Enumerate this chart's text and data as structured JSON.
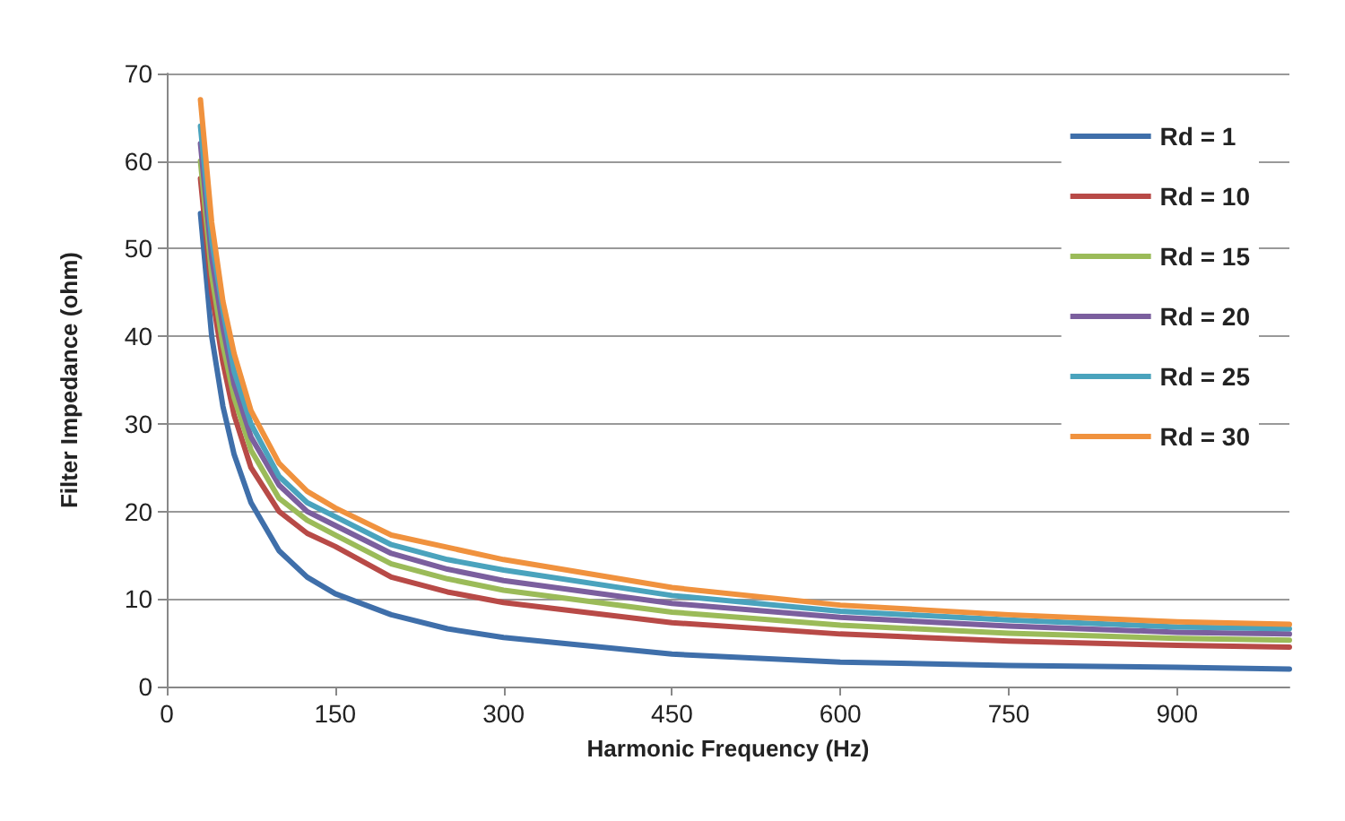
{
  "chart_data": {
    "type": "line",
    "xlabel": "Harmonic Frequency (Hz)",
    "ylabel": "Filter Impedance (ohm)",
    "x": [
      30,
      40,
      50,
      60,
      75,
      100,
      125,
      150,
      200,
      250,
      300,
      450,
      600,
      750,
      900,
      1000
    ],
    "series": [
      {
        "name": "Rd = 1",
        "color": "#3f6faa",
        "values": [
          54,
          40,
          32,
          26.5,
          21,
          15.5,
          12.5,
          10.6,
          8.2,
          6.6,
          5.6,
          3.7,
          2.8,
          2.4,
          2.2,
          2.0
        ]
      },
      {
        "name": "Rd = 10",
        "color": "#b84a47",
        "values": [
          58,
          45,
          37,
          31,
          25,
          20,
          17.5,
          16,
          12.5,
          10.8,
          9.6,
          7.3,
          6.0,
          5.2,
          4.7,
          4.5
        ]
      },
      {
        "name": "Rd = 15",
        "color": "#9bbb59",
        "values": [
          60,
          47,
          39,
          33,
          27,
          21.5,
          19,
          17.3,
          14,
          12.3,
          11,
          8.5,
          7.0,
          6.1,
          5.5,
          5.3
        ]
      },
      {
        "name": "Rd = 20",
        "color": "#7b5f9e",
        "values": [
          62,
          49,
          41,
          34.5,
          28.5,
          23,
          20,
          18.4,
          15.2,
          13.4,
          12.1,
          9.5,
          7.9,
          6.9,
          6.2,
          6.0
        ]
      },
      {
        "name": "Rd = 25",
        "color": "#4aa3bd",
        "values": [
          64,
          51,
          43,
          36,
          30,
          24,
          21,
          19.4,
          16.2,
          14.5,
          13.3,
          10.4,
          8.6,
          7.6,
          6.8,
          6.6
        ]
      },
      {
        "name": "Rd = 30",
        "color": "#f0923e",
        "values": [
          67,
          53,
          44,
          38,
          31.5,
          25.5,
          22.3,
          20.4,
          17.3,
          15.9,
          14.5,
          11.3,
          9.3,
          8.2,
          7.4,
          7.1
        ]
      }
    ],
    "xlim": [
      0,
      1000
    ],
    "xticks": [
      0,
      150,
      300,
      450,
      600,
      750,
      900
    ],
    "ylim": [
      0,
      70
    ],
    "yticks": [
      0,
      10,
      20,
      30,
      40,
      50,
      60,
      70
    ],
    "grid": "y",
    "legend": "top right",
    "marker": "none",
    "line_style": "solid"
  }
}
